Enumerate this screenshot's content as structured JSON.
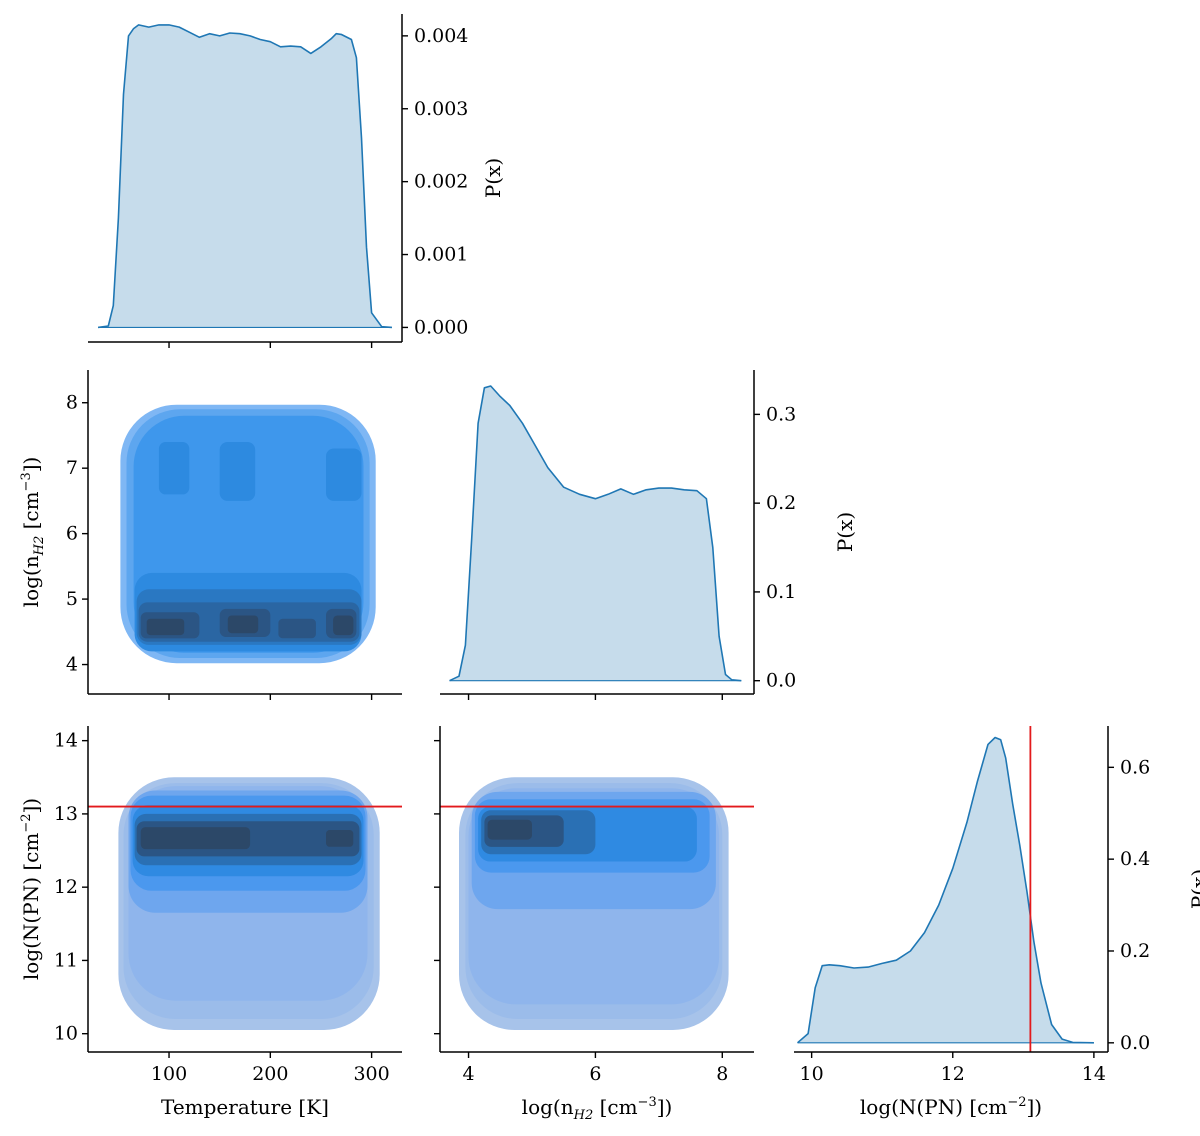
{
  "chart_data": [
    {
      "type": "area",
      "panel": "marginal-temperature",
      "xlabel": "",
      "ylabel": "P(x)",
      "xlim": [
        20,
        330
      ],
      "ylim": [
        -0.0002,
        0.0043
      ],
      "xticks": [
        100,
        200,
        300
      ],
      "yticks": [
        0.0,
        0.001,
        0.002,
        0.003,
        0.004
      ],
      "ytick_labels": [
        "0.000",
        "0.001",
        "0.002",
        "0.003",
        "0.004"
      ],
      "show_xtick_labels": false,
      "x": [
        30,
        40,
        45,
        50,
        55,
        60,
        65,
        70,
        80,
        90,
        100,
        110,
        120,
        130,
        140,
        150,
        160,
        170,
        180,
        190,
        200,
        210,
        220,
        230,
        240,
        250,
        260,
        265,
        270,
        280,
        285,
        290,
        295,
        300,
        310,
        320
      ],
      "y": [
        0.0,
        2e-05,
        0.0003,
        0.0015,
        0.0032,
        0.004,
        0.0041,
        0.00415,
        0.00412,
        0.00415,
        0.00415,
        0.00412,
        0.00405,
        0.00398,
        0.00403,
        0.004,
        0.00404,
        0.00403,
        0.004,
        0.00395,
        0.00392,
        0.00385,
        0.00386,
        0.00385,
        0.00376,
        0.00385,
        0.00396,
        0.00403,
        0.00402,
        0.00395,
        0.0037,
        0.0026,
        0.0011,
        0.0002,
        1e-05,
        0.0
      ],
      "color": "#1f77b4",
      "fill": "#c6dceb"
    },
    {
      "type": "heatmap",
      "panel": "joint-temperature-density",
      "xlabel": "",
      "ylabel": "log(n_H2 [cm^-3])",
      "ylabel_parts": [
        "log(n",
        "H2",
        " [cm",
        "−3",
        "])"
      ],
      "xlim": [
        20,
        330
      ],
      "ylim": [
        3.55,
        8.5
      ],
      "xticks": [
        100,
        200,
        300
      ],
      "yticks": [
        4,
        5,
        6,
        7,
        8
      ],
      "show_xtick_labels": false,
      "colors": [
        "#7fb7f4",
        "#5da6ef",
        "#3e97ec",
        "#2d8ae0",
        "#2a78c2",
        "#2a66a3",
        "#2b5584",
        "#2c4868"
      ],
      "levels": [
        [
          {
            "xr": [
              52,
              304
            ],
            "yr": [
              4.02,
              7.97
            ]
          }
        ],
        [
          {
            "xr": [
              58,
              298
            ],
            "yr": [
              4.1,
              7.9
            ]
          }
        ],
        [
          {
            "xr": [
              65,
              292
            ],
            "yr": [
              4.18,
              7.8
            ]
          },
          {
            "xr": [
              240,
              290
            ],
            "yr": [
              5.1,
              6.4
            ]
          }
        ],
        [
          {
            "xr": [
              66,
              290
            ],
            "yr": [
              4.2,
              5.4
            ]
          },
          {
            "xr": [
              90,
              120
            ],
            "yr": [
              6.6,
              7.4
            ]
          },
          {
            "xr": [
              150,
              185
            ],
            "yr": [
              6.5,
              7.4
            ]
          },
          {
            "xr": [
              255,
              290
            ],
            "yr": [
              6.5,
              7.3
            ]
          }
        ],
        [
          {
            "xr": [
              68,
              290
            ],
            "yr": [
              4.3,
              5.15
            ]
          }
        ],
        [
          {
            "xr": [
              70,
              288
            ],
            "yr": [
              4.35,
              4.95
            ]
          }
        ],
        [
          {
            "xr": [
              72,
              130
            ],
            "yr": [
              4.4,
              4.8
            ]
          },
          {
            "xr": [
              150,
              200
            ],
            "yr": [
              4.42,
              4.85
            ]
          },
          {
            "xr": [
              208,
              245
            ],
            "yr": [
              4.4,
              4.7
            ]
          },
          {
            "xr": [
              255,
              285
            ],
            "yr": [
              4.4,
              4.85
            ]
          }
        ],
        [
          {
            "xr": [
              78,
              115
            ],
            "yr": [
              4.45,
              4.7
            ]
          },
          {
            "xr": [
              158,
              188
            ],
            "yr": [
              4.48,
              4.75
            ]
          },
          {
            "xr": [
              262,
              282
            ],
            "yr": [
              4.45,
              4.75
            ]
          }
        ]
      ]
    },
    {
      "type": "area",
      "panel": "marginal-density",
      "xlabel": "",
      "ylabel": "P(x)",
      "xlim": [
        3.55,
        8.5
      ],
      "ylim": [
        -0.015,
        0.35
      ],
      "xticks": [
        4,
        6,
        8
      ],
      "yticks": [
        0.0,
        0.1,
        0.2,
        0.3
      ],
      "ytick_labels": [
        "0.0",
        "0.1",
        "0.2",
        "0.3"
      ],
      "show_xtick_labels": false,
      "x": [
        3.7,
        3.85,
        3.95,
        4.05,
        4.15,
        4.25,
        4.35,
        4.5,
        4.65,
        4.85,
        5.05,
        5.25,
        5.5,
        5.75,
        6.0,
        6.2,
        6.4,
        6.6,
        6.8,
        7.0,
        7.2,
        7.4,
        7.6,
        7.75,
        7.85,
        7.95,
        8.05,
        8.15,
        8.3
      ],
      "y": [
        0.0,
        0.005,
        0.04,
        0.16,
        0.29,
        0.33,
        0.332,
        0.32,
        0.31,
        0.29,
        0.265,
        0.24,
        0.218,
        0.21,
        0.205,
        0.21,
        0.216,
        0.21,
        0.215,
        0.217,
        0.217,
        0.215,
        0.214,
        0.205,
        0.15,
        0.05,
        0.007,
        0.001,
        0.0
      ],
      "color": "#1f77b4",
      "fill": "#c6dceb"
    },
    {
      "type": "heatmap",
      "panel": "joint-temperature-column",
      "xlabel": "Temperature [K]",
      "ylabel": "log(N(PN) [cm^-2])",
      "ylabel_parts": [
        "log(N(PN) [cm",
        "−2",
        "])"
      ],
      "xlim": [
        20,
        330
      ],
      "ylim": [
        9.75,
        14.2
      ],
      "xticks": [
        100,
        200,
        300
      ],
      "yticks": [
        10,
        11,
        12,
        13,
        14
      ],
      "hline": 13.1,
      "hline_color": "#e31a1c",
      "colors": [
        "#a7c3ea",
        "#9bbcea",
        "#8fb5ec",
        "#6ea6ee",
        "#4b98ee",
        "#2f8ae2",
        "#2a70b4",
        "#2b5584",
        "#2c4868"
      ],
      "levels": [
        [
          {
            "xr": [
              50,
              308
            ],
            "yr": [
              10.05,
              13.5
            ]
          }
        ],
        [
          {
            "xr": [
              55,
              302
            ],
            "yr": [
              10.2,
              13.42
            ]
          }
        ],
        [
          {
            "xr": [
              60,
              296
            ],
            "yr": [
              10.45,
              13.38
            ]
          }
        ],
        [
          {
            "xr": [
              60,
              296
            ],
            "yr": [
              11.65,
              13.32
            ]
          }
        ],
        [
          {
            "xr": [
              62,
              294
            ],
            "yr": [
              11.95,
              13.25
            ]
          }
        ],
        [
          {
            "xr": [
              64,
              292
            ],
            "yr": [
              12.15,
              13.12
            ]
          }
        ],
        [
          {
            "xr": [
              66,
              290
            ],
            "yr": [
              12.3,
              13.0
            ]
          }
        ],
        [
          {
            "xr": [
              68,
              288
            ],
            "yr": [
              12.42,
              12.9
            ]
          }
        ],
        [
          {
            "xr": [
              72,
              180
            ],
            "yr": [
              12.52,
              12.82
            ]
          },
          {
            "xr": [
              255,
              282
            ],
            "yr": [
              12.55,
              12.78
            ]
          }
        ]
      ]
    },
    {
      "type": "heatmap",
      "panel": "joint-density-column",
      "xlabel": "log(n_H2 [cm^-3])",
      "xlabel_parts": [
        "log(n",
        "H2",
        " [cm",
        "−3",
        "])"
      ],
      "ylabel": "",
      "xlim": [
        3.55,
        8.5
      ],
      "ylim": [
        9.75,
        14.2
      ],
      "xticks": [
        4,
        6,
        8
      ],
      "yticks": [
        10,
        11,
        12,
        13,
        14
      ],
      "show_ytick_labels": false,
      "hline": 13.1,
      "hline_color": "#e31a1c",
      "colors": [
        "#a7c3ea",
        "#9bbcea",
        "#8fb5ec",
        "#6ea6ee",
        "#4b98ee",
        "#2f8ae2",
        "#2a70b4",
        "#2b5584",
        "#2c4868"
      ],
      "levels": [
        [
          {
            "xr": [
              3.85,
              8.1
            ],
            "yr": [
              10.05,
              13.5
            ]
          }
        ],
        [
          {
            "xr": [
              3.95,
              8.0
            ],
            "yr": [
              10.2,
              13.42
            ]
          }
        ],
        [
          {
            "xr": [
              4.0,
              7.95
            ],
            "yr": [
              10.4,
              13.35
            ]
          }
        ],
        [
          {
            "xr": [
              4.05,
              7.9
            ],
            "yr": [
              11.7,
              13.3
            ]
          }
        ],
        [
          {
            "xr": [
              4.1,
              7.8
            ],
            "yr": [
              12.2,
              13.2
            ]
          }
        ],
        [
          {
            "xr": [
              4.15,
              7.6
            ],
            "yr": [
              12.35,
              13.1
            ]
          }
        ],
        [
          {
            "xr": [
              4.2,
              6.0
            ],
            "yr": [
              12.45,
              13.05
            ]
          }
        ],
        [
          {
            "xr": [
              4.25,
              5.5
            ],
            "yr": [
              12.55,
              12.98
            ]
          }
        ],
        [
          {
            "xr": [
              4.3,
              5.0
            ],
            "yr": [
              12.65,
              12.92
            ]
          }
        ]
      ]
    },
    {
      "type": "area",
      "panel": "marginal-column",
      "xlabel": "log(N(PN) [cm^-2])",
      "xlabel_parts": [
        "log(N(PN) [cm",
        "−2",
        "])"
      ],
      "ylabel": "P(x)",
      "xlim": [
        9.75,
        14.2
      ],
      "ylim": [
        -0.02,
        0.69
      ],
      "xticks": [
        10,
        12,
        14
      ],
      "yticks": [
        0.0,
        0.2,
        0.4,
        0.6
      ],
      "ytick_labels": [
        "0.0",
        "0.2",
        "0.4",
        "0.6"
      ],
      "vline": 13.1,
      "vline_color": "#e31a1c",
      "x": [
        9.8,
        9.95,
        10.05,
        10.15,
        10.25,
        10.4,
        10.6,
        10.8,
        11.0,
        11.2,
        11.4,
        11.6,
        11.8,
        12.0,
        12.2,
        12.35,
        12.5,
        12.6,
        12.68,
        12.75,
        12.85,
        12.95,
        13.05,
        13.15,
        13.25,
        13.4,
        13.55,
        13.7,
        14.0
      ],
      "y": [
        0.0,
        0.02,
        0.12,
        0.168,
        0.17,
        0.168,
        0.163,
        0.165,
        0.173,
        0.18,
        0.2,
        0.24,
        0.3,
        0.38,
        0.48,
        0.57,
        0.65,
        0.665,
        0.66,
        0.62,
        0.52,
        0.43,
        0.33,
        0.22,
        0.13,
        0.04,
        0.008,
        0.001,
        0.0
      ],
      "color": "#1f77b4",
      "fill": "#c6dceb"
    }
  ]
}
